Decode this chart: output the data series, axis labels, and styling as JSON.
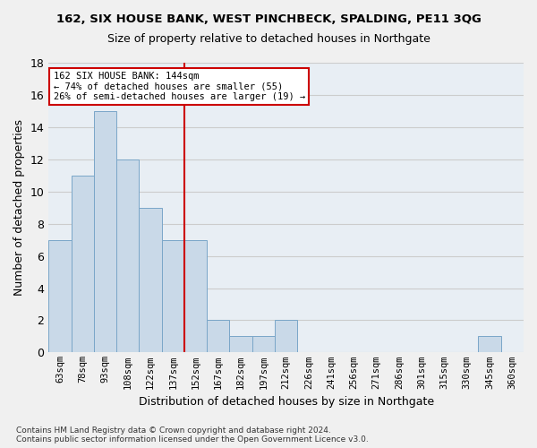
{
  "title1": "162, SIX HOUSE BANK, WEST PINCHBECK, SPALDING, PE11 3QG",
  "title2": "Size of property relative to detached houses in Northgate",
  "xlabel": "Distribution of detached houses by size in Northgate",
  "ylabel": "Number of detached properties",
  "bins": [
    "63sqm",
    "78sqm",
    "93sqm",
    "108sqm",
    "122sqm",
    "137sqm",
    "152sqm",
    "167sqm",
    "182sqm",
    "197sqm",
    "212sqm",
    "226sqm",
    "241sqm",
    "256sqm",
    "271sqm",
    "286sqm",
    "301sqm",
    "315sqm",
    "330sqm",
    "345sqm",
    "360sqm"
  ],
  "values": [
    7,
    11,
    15,
    12,
    9,
    7,
    7,
    2,
    1,
    1,
    2,
    0,
    0,
    0,
    0,
    0,
    0,
    0,
    0,
    1,
    0
  ],
  "bar_color": "#c9d9e8",
  "bar_edge_color": "#7aa6c8",
  "vline_color": "#cc0000",
  "vline_pos": 5.5,
  "annotation_text": "162 SIX HOUSE BANK: 144sqm\n← 74% of detached houses are smaller (55)\n26% of semi-detached houses are larger (19) →",
  "annotation_box_color": "#ffffff",
  "annotation_box_edge": "#cc0000",
  "footnote": "Contains HM Land Registry data © Crown copyright and database right 2024.\nContains public sector information licensed under the Open Government Licence v3.0.",
  "ylim": [
    0,
    18
  ],
  "yticks": [
    0,
    2,
    4,
    6,
    8,
    10,
    12,
    14,
    16,
    18
  ],
  "grid_color": "#cccccc",
  "bg_color": "#e8eef4",
  "fig_bg_color": "#f0f0f0"
}
